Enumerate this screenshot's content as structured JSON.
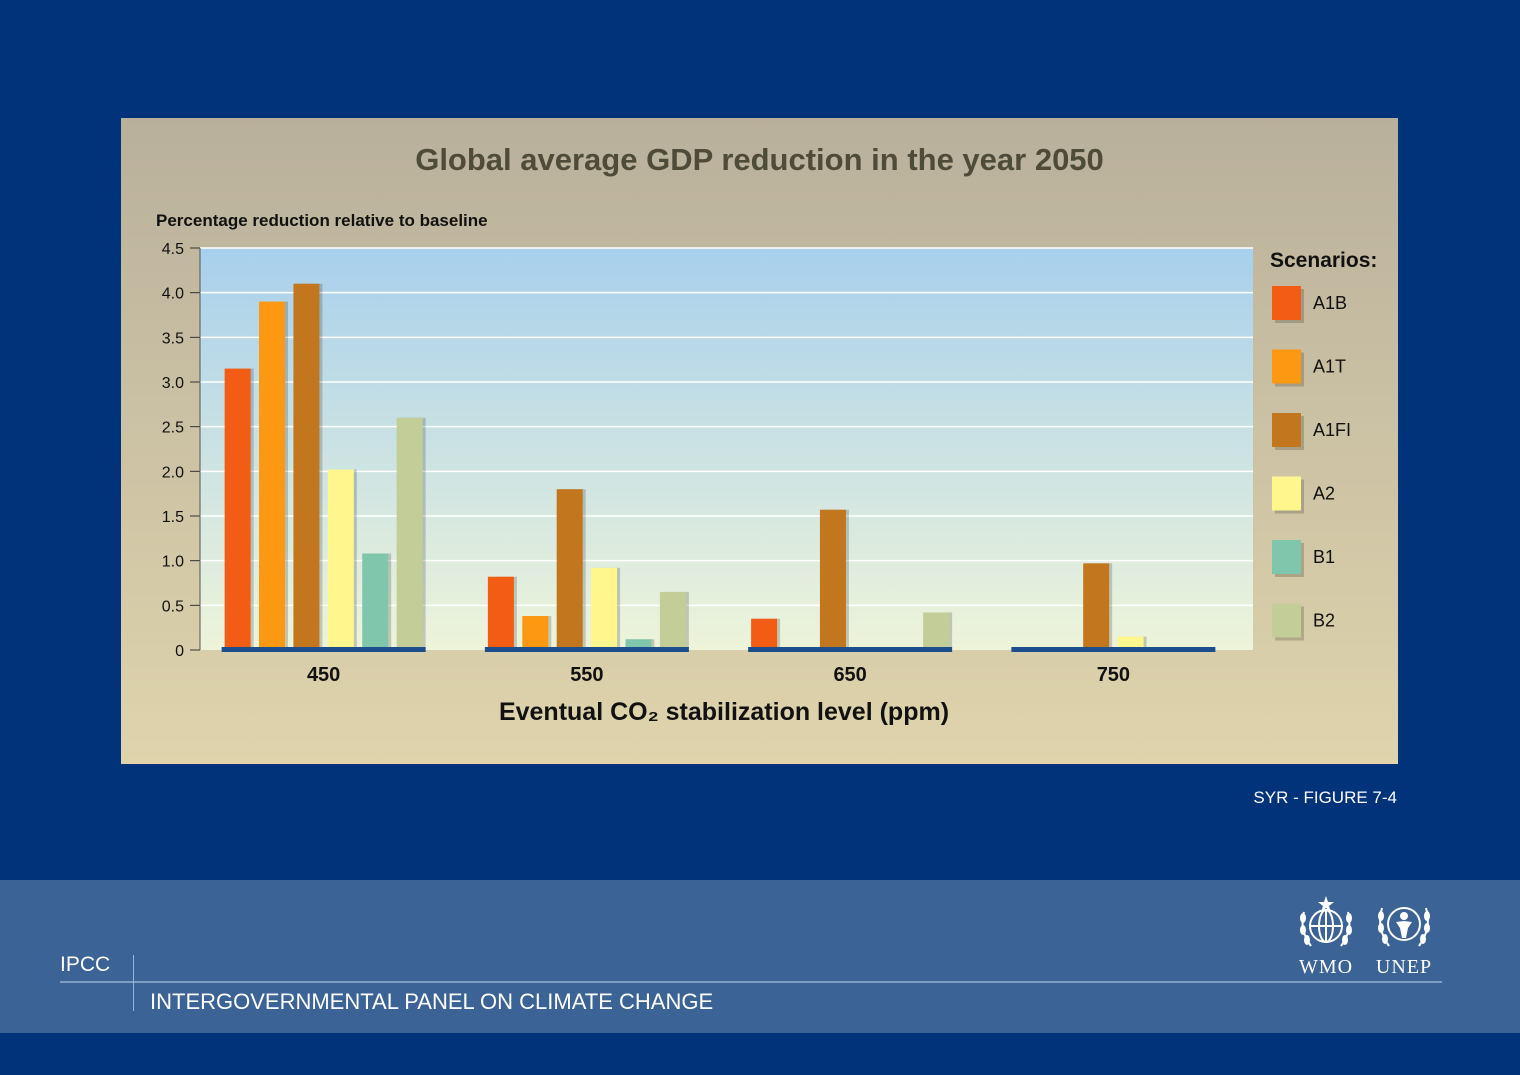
{
  "chart_data": {
    "type": "bar",
    "title": "Global average GDP reduction in the year 2050",
    "ylabel": "Percentage reduction relative to baseline",
    "xlabel": "Eventual CO₂ stabilization level (ppm)",
    "categories": [
      "450",
      "550",
      "650",
      "750"
    ],
    "ylim": [
      0,
      4.5
    ],
    "yticks": [
      "0",
      "0.5",
      "1.0",
      "1.5",
      "2.0",
      "2.5",
      "3.0",
      "3.5",
      "4.0",
      "4.5"
    ],
    "grid": true,
    "legend_title": "Scenarios:",
    "legend_position": "right",
    "series": [
      {
        "name": "A1B",
        "color": "#f25c15",
        "values": [
          3.15,
          0.82,
          0.35,
          null
        ]
      },
      {
        "name": "A1T",
        "color": "#fd9812",
        "values": [
          3.9,
          0.38,
          null,
          null
        ]
      },
      {
        "name": "A1FI",
        "color": "#c2761d",
        "values": [
          4.1,
          1.8,
          1.57,
          0.97
        ]
      },
      {
        "name": "A2",
        "color": "#fff78e",
        "values": [
          2.02,
          0.92,
          null,
          0.15
        ]
      },
      {
        "name": "B1",
        "color": "#7fc6ad",
        "values": [
          1.08,
          0.12,
          null,
          null
        ]
      },
      {
        "name": "B2",
        "color": "#c2cd98",
        "values": [
          2.6,
          0.65,
          0.42,
          null
        ]
      }
    ]
  },
  "figure_ref": "SYR - FIGURE 7-4",
  "footer": {
    "org_short": "IPCC",
    "org_full": "INTERGOVERNMENTAL PANEL ON CLIMATE CHANGE",
    "logos": [
      "WMO",
      "UNEP"
    ]
  }
}
